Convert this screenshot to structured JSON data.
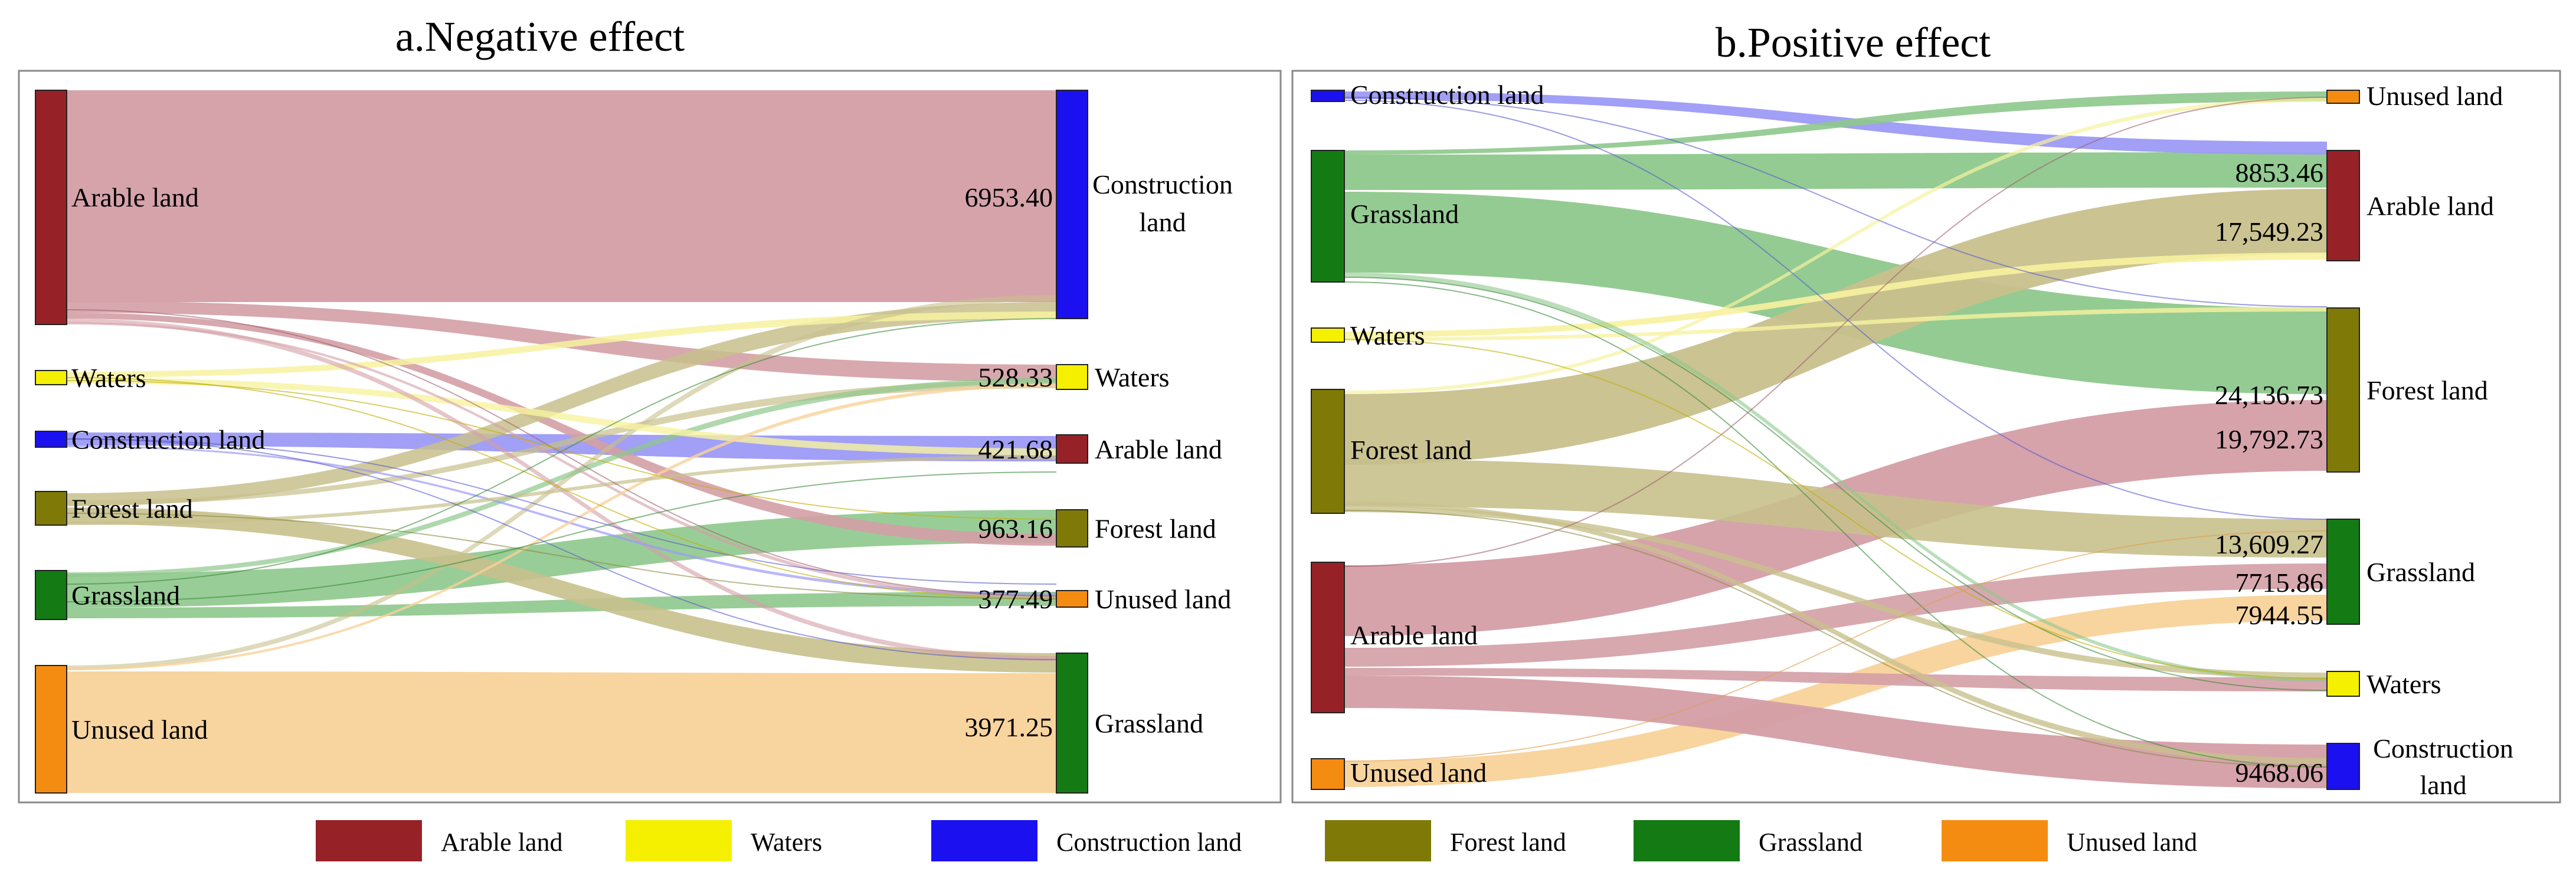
{
  "colors": {
    "arable": "#962228",
    "waters": "#f4f000",
    "construction": "#1a10f0",
    "forest": "#7f7a08",
    "grassland": "#147a14",
    "unused": "#f58c12",
    "arable_flow": "#d49ea6",
    "waters_flow": "#f7f2a0",
    "construction_flow": "#9c9af6",
    "forest_flow": "#c8c08c",
    "grassland_flow": "#8ec88c",
    "unused_flow": "#f8d29a"
  },
  "panel_a": {
    "title": "a.Negative effect",
    "left_nodes": [
      {
        "id": "arable",
        "label": "Arable land"
      },
      {
        "id": "waters",
        "label": "Waters"
      },
      {
        "id": "construction",
        "label": "Construction land"
      },
      {
        "id": "forest",
        "label": "Forest land"
      },
      {
        "id": "grassland",
        "label": "Grassland"
      },
      {
        "id": "unused",
        "label": "Unused land"
      }
    ],
    "right_nodes": [
      {
        "id": "construction",
        "label_lines": [
          "Construction",
          "land"
        ],
        "value": "6953.40"
      },
      {
        "id": "waters",
        "label_lines": [
          "Waters"
        ],
        "value": "528.33"
      },
      {
        "id": "arable",
        "label_lines": [
          "Arable land"
        ],
        "value": "421.68"
      },
      {
        "id": "forest",
        "label_lines": [
          "Forest land"
        ],
        "value": "963.16"
      },
      {
        "id": "unused",
        "label_lines": [
          "Unused land"
        ],
        "value": "377.49"
      },
      {
        "id": "grassland",
        "label_lines": [
          "Grassland"
        ],
        "value": "3971.25"
      }
    ]
  },
  "panel_b": {
    "title": "b.Positive effect",
    "left_nodes": [
      {
        "id": "construction",
        "label": "Construction land"
      },
      {
        "id": "grassland",
        "label": "Grassland"
      },
      {
        "id": "waters",
        "label": "Waters"
      },
      {
        "id": "forest",
        "label": "Forest land"
      },
      {
        "id": "arable",
        "label": "Arable land"
      },
      {
        "id": "unused",
        "label": "Unused land"
      }
    ],
    "right_nodes": [
      {
        "id": "unused",
        "label_lines": [
          "Unused land"
        ]
      },
      {
        "id": "arable",
        "label_lines": [
          "Arable land"
        ]
      },
      {
        "id": "forest",
        "label_lines": [
          "Forest land"
        ]
      },
      {
        "id": "grassland",
        "label_lines": [
          "Grassland"
        ]
      },
      {
        "id": "waters",
        "label_lines": [
          "Waters"
        ]
      },
      {
        "id": "construction",
        "label_lines": [
          "Construction",
          "land"
        ]
      }
    ],
    "flow_values": [
      "8853.46",
      "17,549.23",
      "24,136.73",
      "19,792.73",
      "13,609.27",
      "7715.86",
      "7944.55",
      "9468.06"
    ]
  },
  "legend": [
    {
      "id": "arable",
      "label": "Arable land"
    },
    {
      "id": "waters",
      "label": "Waters"
    },
    {
      "id": "construction",
      "label": "Construction land"
    },
    {
      "id": "forest",
      "label": "Forest land"
    },
    {
      "id": "grassland",
      "label": "Grassland"
    },
    {
      "id": "unused",
      "label": "Unused land"
    }
  ]
}
